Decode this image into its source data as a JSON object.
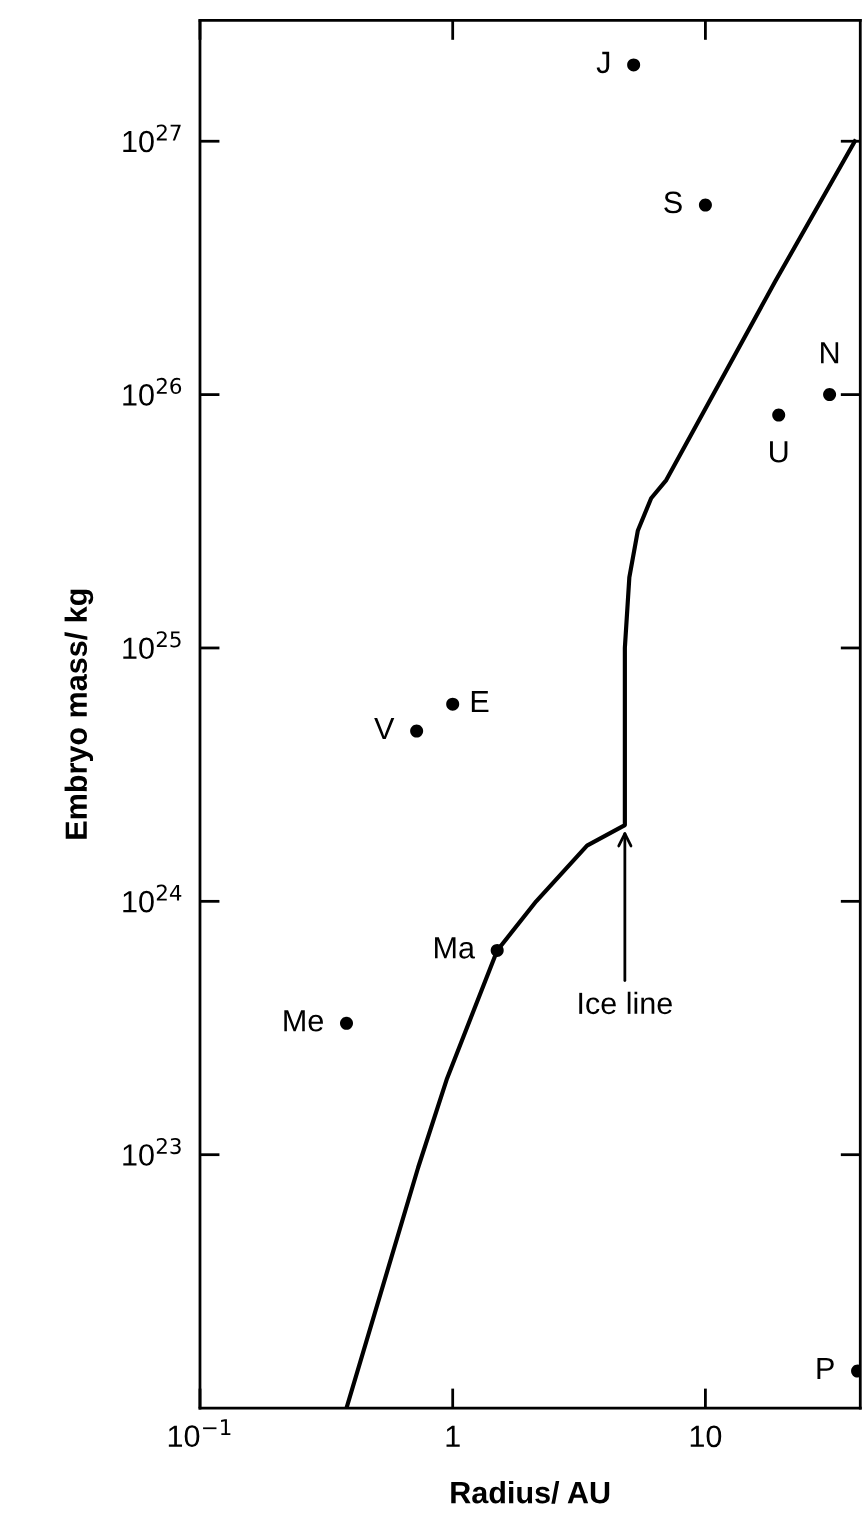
{
  "chart_data": {
    "type": "scatter",
    "xlabel": "Radius/ AU",
    "ylabel": "Embryo mass/ kg",
    "log": "xy",
    "xlim": [
      0.1,
      41
    ],
    "ylim": [
      1e+22,
      3e+27
    ],
    "xticks": [
      {
        "value": 0.1,
        "label": "10$^{−1}$"
      },
      1,
      10
    ],
    "yticks": [
      {
        "value": 1e+23,
        "label": "10$^{23}$"
      },
      {
        "value": 1e+24,
        "label": "10$^{24}$"
      },
      {
        "value": 1e+25,
        "label": "10$^{25}$"
      },
      {
        "value": 1e+26,
        "label": "10$^{26}$"
      },
      {
        "value": 1e+27,
        "label": "10$^{27}$"
      }
    ],
    "grid": false,
    "legend": false,
    "marker": "circle",
    "series": [
      {
        "color": "#000000",
        "x": [
          0.38,
          0.72,
          1.0,
          1.5,
          5.2,
          10,
          19.5,
          31,
          40
        ],
        "values": [
          3.3e+23,
          4.7e+24,
          6e+24,
          6.4e+23,
          2e+27,
          5.6e+26,
          8.3e+25,
          1e+26,
          1.4e+22
        ]
      },
      {
        "type": "line",
        "color": "#000000",
        "line_style": "solid",
        "marker": "none",
        "x": [
          0.38,
          0.73,
          0.95,
          1.5,
          2.14,
          3.4,
          4.8,
          4.8,
          5.0,
          5.4,
          6.1,
          7.0,
          18.9,
          39
        ],
        "values": [
          1e+22,
          8.9e+22,
          2e+23,
          6.4e+23,
          1e+24,
          1.66e+24,
          2e+24,
          1e+25,
          1.9e+25,
          2.9e+25,
          3.9e+25,
          4.6e+25,
          2.8e+26,
          1e+27
        ]
      }
    ],
    "annotations": [
      {
        "text": "Me",
        "x": 0.38,
        "y": 3.3e+23
      },
      {
        "text": "V",
        "x": 0.72,
        "y": 4.7e+24
      },
      {
        "text": "E",
        "x": 1.0,
        "y": 6e+24
      },
      {
        "text": "Ma",
        "x": 1.5,
        "y": 6.4e+23
      },
      {
        "text": "J",
        "x": 5.2,
        "y": 2e+27
      },
      {
        "text": "S",
        "x": 10,
        "y": 5.6e+26
      },
      {
        "text": "U",
        "x": 19.5,
        "y": 8.3e+25
      },
      {
        "text": "N",
        "x": 31,
        "y": 1e+26
      },
      {
        "text": "P",
        "x": 40,
        "y": 1.4e+22
      },
      {
        "text": "Ice line",
        "x": 4.8,
        "y": 2e+24
      }
    ]
  }
}
